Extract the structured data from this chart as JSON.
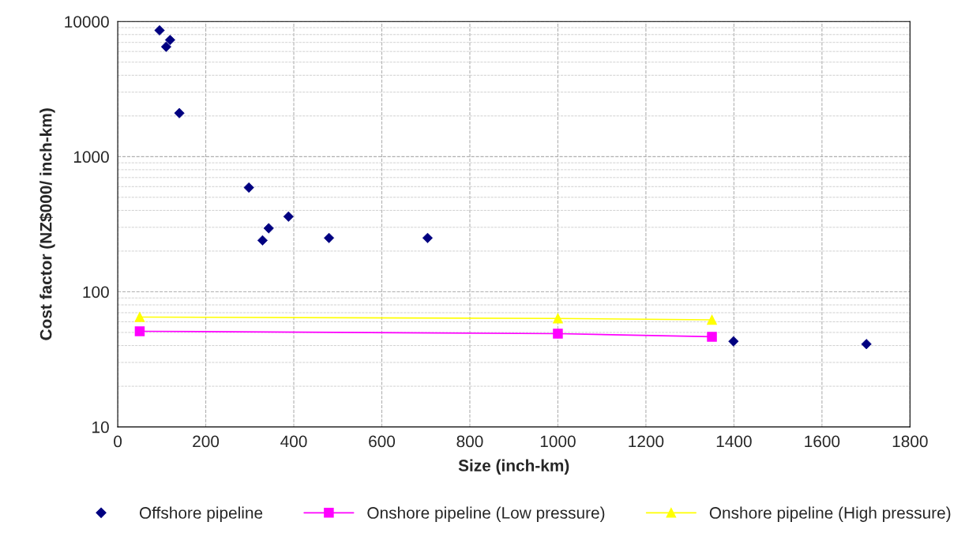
{
  "chart_data": {
    "type": "scatter",
    "xlabel": "Size (inch-km)",
    "ylabel": "Cost factor (NZ$000/ inch-km)",
    "xlim": [
      0,
      1800
    ],
    "xticks": [
      0,
      200,
      400,
      600,
      800,
      1000,
      1200,
      1400,
      1600,
      1800
    ],
    "ylim": [
      10,
      10000
    ],
    "yticks": [
      10,
      100,
      1000,
      10000
    ],
    "log": "y",
    "grid": true,
    "legend": "bottom",
    "series": [
      {
        "name": "Offshore pipeline",
        "marker": "diamond",
        "color": "#000080",
        "x": [
          95,
          110,
          119,
          140,
          298,
          329,
          343,
          388,
          480,
          704,
          1399,
          1701
        ],
        "values": [
          8600,
          6500,
          7300,
          2100,
          590,
          240,
          295,
          360,
          250,
          250,
          43,
          41
        ]
      },
      {
        "name": "Onshore pipeline (Low pressure)",
        "type": "line",
        "marker": "square",
        "color": "#ff00ff",
        "x": [
          50,
          1000,
          1350
        ],
        "values": [
          51,
          49,
          46.5
        ]
      },
      {
        "name": "Onshore pipeline (High pressure)",
        "type": "line",
        "marker": "triangle",
        "color": "#ffff00",
        "x": [
          50,
          1000,
          1350
        ],
        "values": [
          65,
          63.5,
          62
        ]
      }
    ]
  }
}
